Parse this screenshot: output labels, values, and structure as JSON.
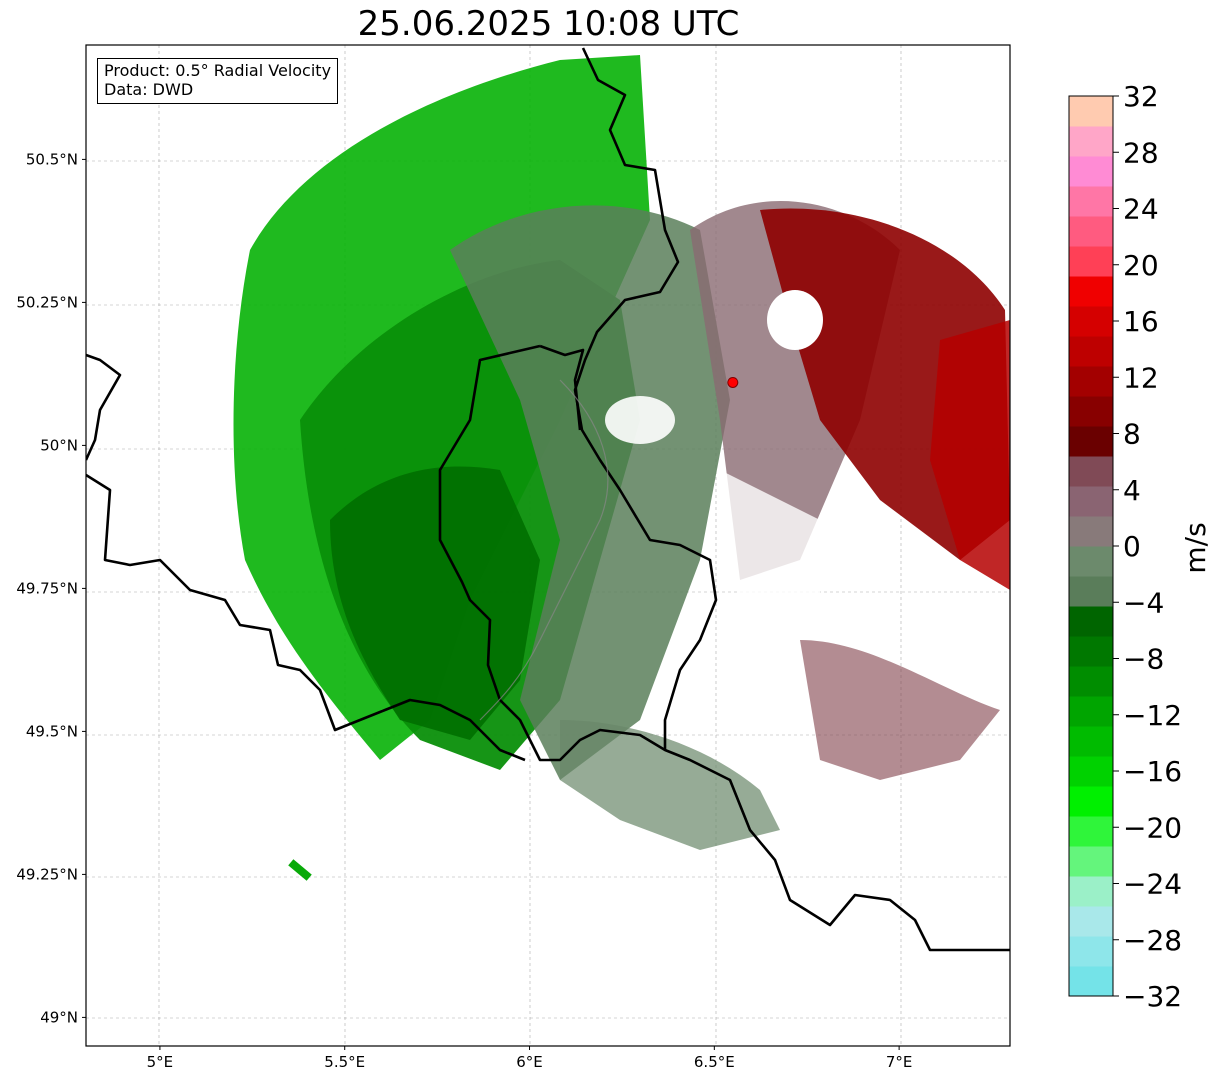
{
  "title": "25.06.2025 10:08 UTC",
  "info": {
    "product": "Product: 0.5° Radial Velocity",
    "source": "Data: DWD"
  },
  "axes": {
    "lon_range": [
      4.8,
      7.3
    ],
    "lat_range": [
      48.95,
      50.7
    ],
    "lon_ticks": [
      "5°E",
      "5.5°E",
      "6°E",
      "6.5°E",
      "7°E"
    ],
    "lat_ticks": [
      "49°N",
      "49.25°N",
      "49.5°N",
      "49.75°N",
      "50°N",
      "50.25°N",
      "50.5°N"
    ],
    "grid": "dashed"
  },
  "radar_site": {
    "lon": 6.55,
    "lat": 50.11,
    "color": "#ff0000"
  },
  "colorbar": {
    "label": "m/s",
    "min": -32,
    "max": 32,
    "tick_labels": [
      "32",
      "28",
      "24",
      "20",
      "16",
      "12",
      "8",
      "4",
      "0",
      "−4",
      "−8",
      "−12",
      "−16",
      "−20",
      "−24",
      "−28",
      "−32"
    ],
    "colors_bottom_to_top": [
      "#74e3e8",
      "#8ee6ea",
      "#a9e8ea",
      "#9bf0c8",
      "#64f57c",
      "#2ff53a",
      "#00f000",
      "#00d200",
      "#00bb00",
      "#00a500",
      "#008d00",
      "#007800",
      "#006500",
      "#5a7d5a",
      "#6c8a6c",
      "#887a7a",
      "#8a6472",
      "#804a56",
      "#6a0000",
      "#880000",
      "#a30000",
      "#be0000",
      "#d50000",
      "#f00000",
      "#ff4056",
      "#ff5b80",
      "#ff76a6",
      "#ff8bd4",
      "#ffa6c8",
      "#ffcbb0"
    ]
  }
}
